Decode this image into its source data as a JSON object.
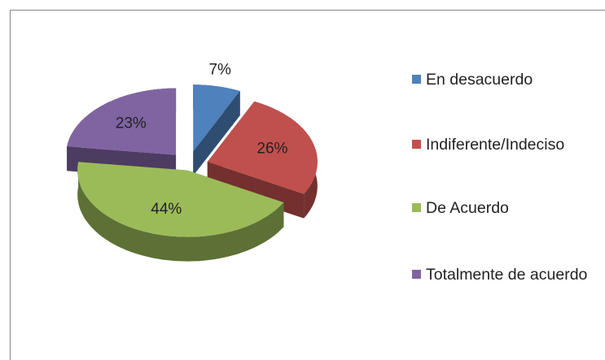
{
  "chart_data": {
    "type": "pie3d",
    "categories": [
      "En desacuerdo",
      "Indiferente/Indeciso",
      "De Acuerdo",
      "Totalmente de acuerdo"
    ],
    "values": [
      7,
      26,
      44,
      23
    ],
    "value_labels": [
      "7%",
      "26%",
      "44%",
      "23%"
    ],
    "colors": [
      "#4f81bd",
      "#c0504d",
      "#9bbb59",
      "#8064a2"
    ],
    "legend": "right"
  }
}
